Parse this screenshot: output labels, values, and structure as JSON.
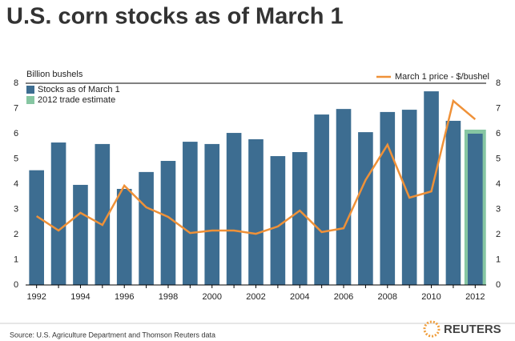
{
  "chart_data": {
    "type": "bar",
    "title": "U.S. corn stocks as of March 1",
    "y_label": "Billion bushels",
    "source": "Source: U.S. Agriculture Department and Thomson Reuters data",
    "brand": "REUTERS",
    "categories": [
      "1992",
      null,
      "1994",
      null,
      "1996",
      null,
      "1998",
      null,
      "2000",
      null,
      "2002",
      null,
      "2004",
      null,
      "2006",
      null,
      "2008",
      null,
      "2010",
      null,
      "2012"
    ],
    "series": [
      {
        "name": "Stocks as of March 1",
        "type": "bar",
        "color": "#3d6d91",
        "values": [
          4.55,
          5.65,
          3.97,
          5.59,
          3.81,
          4.48,
          4.92,
          5.68,
          5.59,
          6.03,
          5.78,
          5.11,
          5.27,
          6.76,
          6.98,
          6.06,
          6.86,
          6.95,
          7.68,
          6.51,
          6.0
        ]
      },
      {
        "name": "2012 trade estimate",
        "type": "bar",
        "color": "#86c6a2",
        "values": [
          null,
          null,
          null,
          null,
          null,
          null,
          null,
          null,
          null,
          null,
          null,
          null,
          null,
          null,
          null,
          null,
          null,
          null,
          null,
          null,
          6.16
        ]
      },
      {
        "name": "March 1 price - $/bushel",
        "type": "line",
        "axis": "y2",
        "color": "#ef9138",
        "values": [
          2.73,
          2.16,
          2.86,
          2.38,
          3.94,
          3.08,
          2.7,
          2.06,
          2.16,
          2.16,
          2.03,
          2.32,
          2.95,
          2.1,
          2.25,
          4.16,
          5.56,
          3.46,
          3.71,
          7.3,
          6.57
        ]
      }
    ],
    "ylim": [
      0,
      8
    ],
    "yticks": [
      0,
      1,
      2,
      3,
      4,
      5,
      6,
      7,
      8
    ],
    "y2lim": [
      0,
      8
    ],
    "y2ticks": [
      0,
      1,
      2,
      3,
      4,
      5,
      6,
      7,
      8
    ]
  }
}
